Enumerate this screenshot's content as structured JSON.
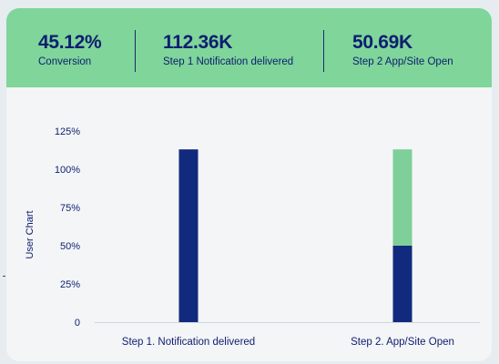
{
  "stats": [
    {
      "value": "45.12%",
      "label": "Conversion"
    },
    {
      "value": "112.36K",
      "label": "Step 1 Notification delivered"
    },
    {
      "value": "50.69K",
      "label": "Step 2 App/Site Open"
    }
  ],
  "colors": {
    "banner": "#7fd59a",
    "bar_dark": "#112a7d",
    "bar_light": "#7fcf9a",
    "text": "#0d1e70"
  },
  "chart_data": {
    "type": "bar",
    "ylabel": "User Chart",
    "ylim": [
      0,
      125
    ],
    "yticks": [
      "0",
      "25%",
      "50%",
      "75%",
      "100%",
      "125%"
    ],
    "categories": [
      "Step 1. Notification delivered",
      "Step 2. App/Site Open"
    ],
    "series": [
      {
        "values": [
          113,
          50
        ],
        "color": "#112a7d"
      },
      {
        "values": [
          0,
          63
        ],
        "color": "#7fcf9a"
      }
    ],
    "grid": false
  }
}
